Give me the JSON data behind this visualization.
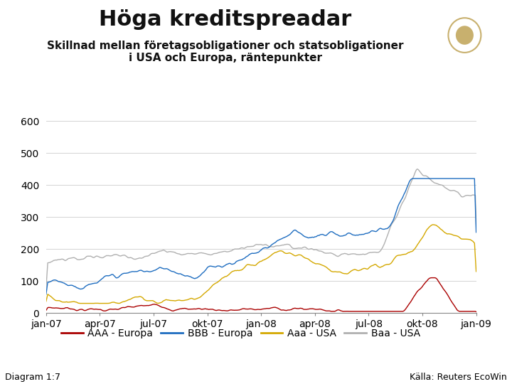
{
  "title": "Höga kreditspreadar",
  "subtitle": "Skillnad mellan företagsobligationer och statsobligationer\ni USA och Europa, räntepunkter",
  "diagram_label": "Diagram 1:7",
  "source_label": "Källa: Reuters EcoWin",
  "legend_labels": [
    "AAA - Europa",
    "BBB - Europa",
    "Aaa - USA",
    "Baa - USA"
  ],
  "line_colors": [
    "#aa0000",
    "#1e6dc0",
    "#d4a800",
    "#b0b0b0"
  ],
  "ylim": [
    0,
    600
  ],
  "yticks": [
    0,
    100,
    200,
    300,
    400,
    500,
    600
  ],
  "xtick_labels": [
    "jan-07",
    "apr-07",
    "jul-07",
    "okt-07",
    "jan-08",
    "apr-08",
    "jul-08",
    "okt-08",
    "jan-09"
  ],
  "background_color": "#ffffff",
  "footer_bar_color": "#1a3a8a",
  "title_fontsize": 22,
  "subtitle_fontsize": 11,
  "tick_fontsize": 10,
  "legend_fontsize": 10,
  "footer_fontsize": 9
}
